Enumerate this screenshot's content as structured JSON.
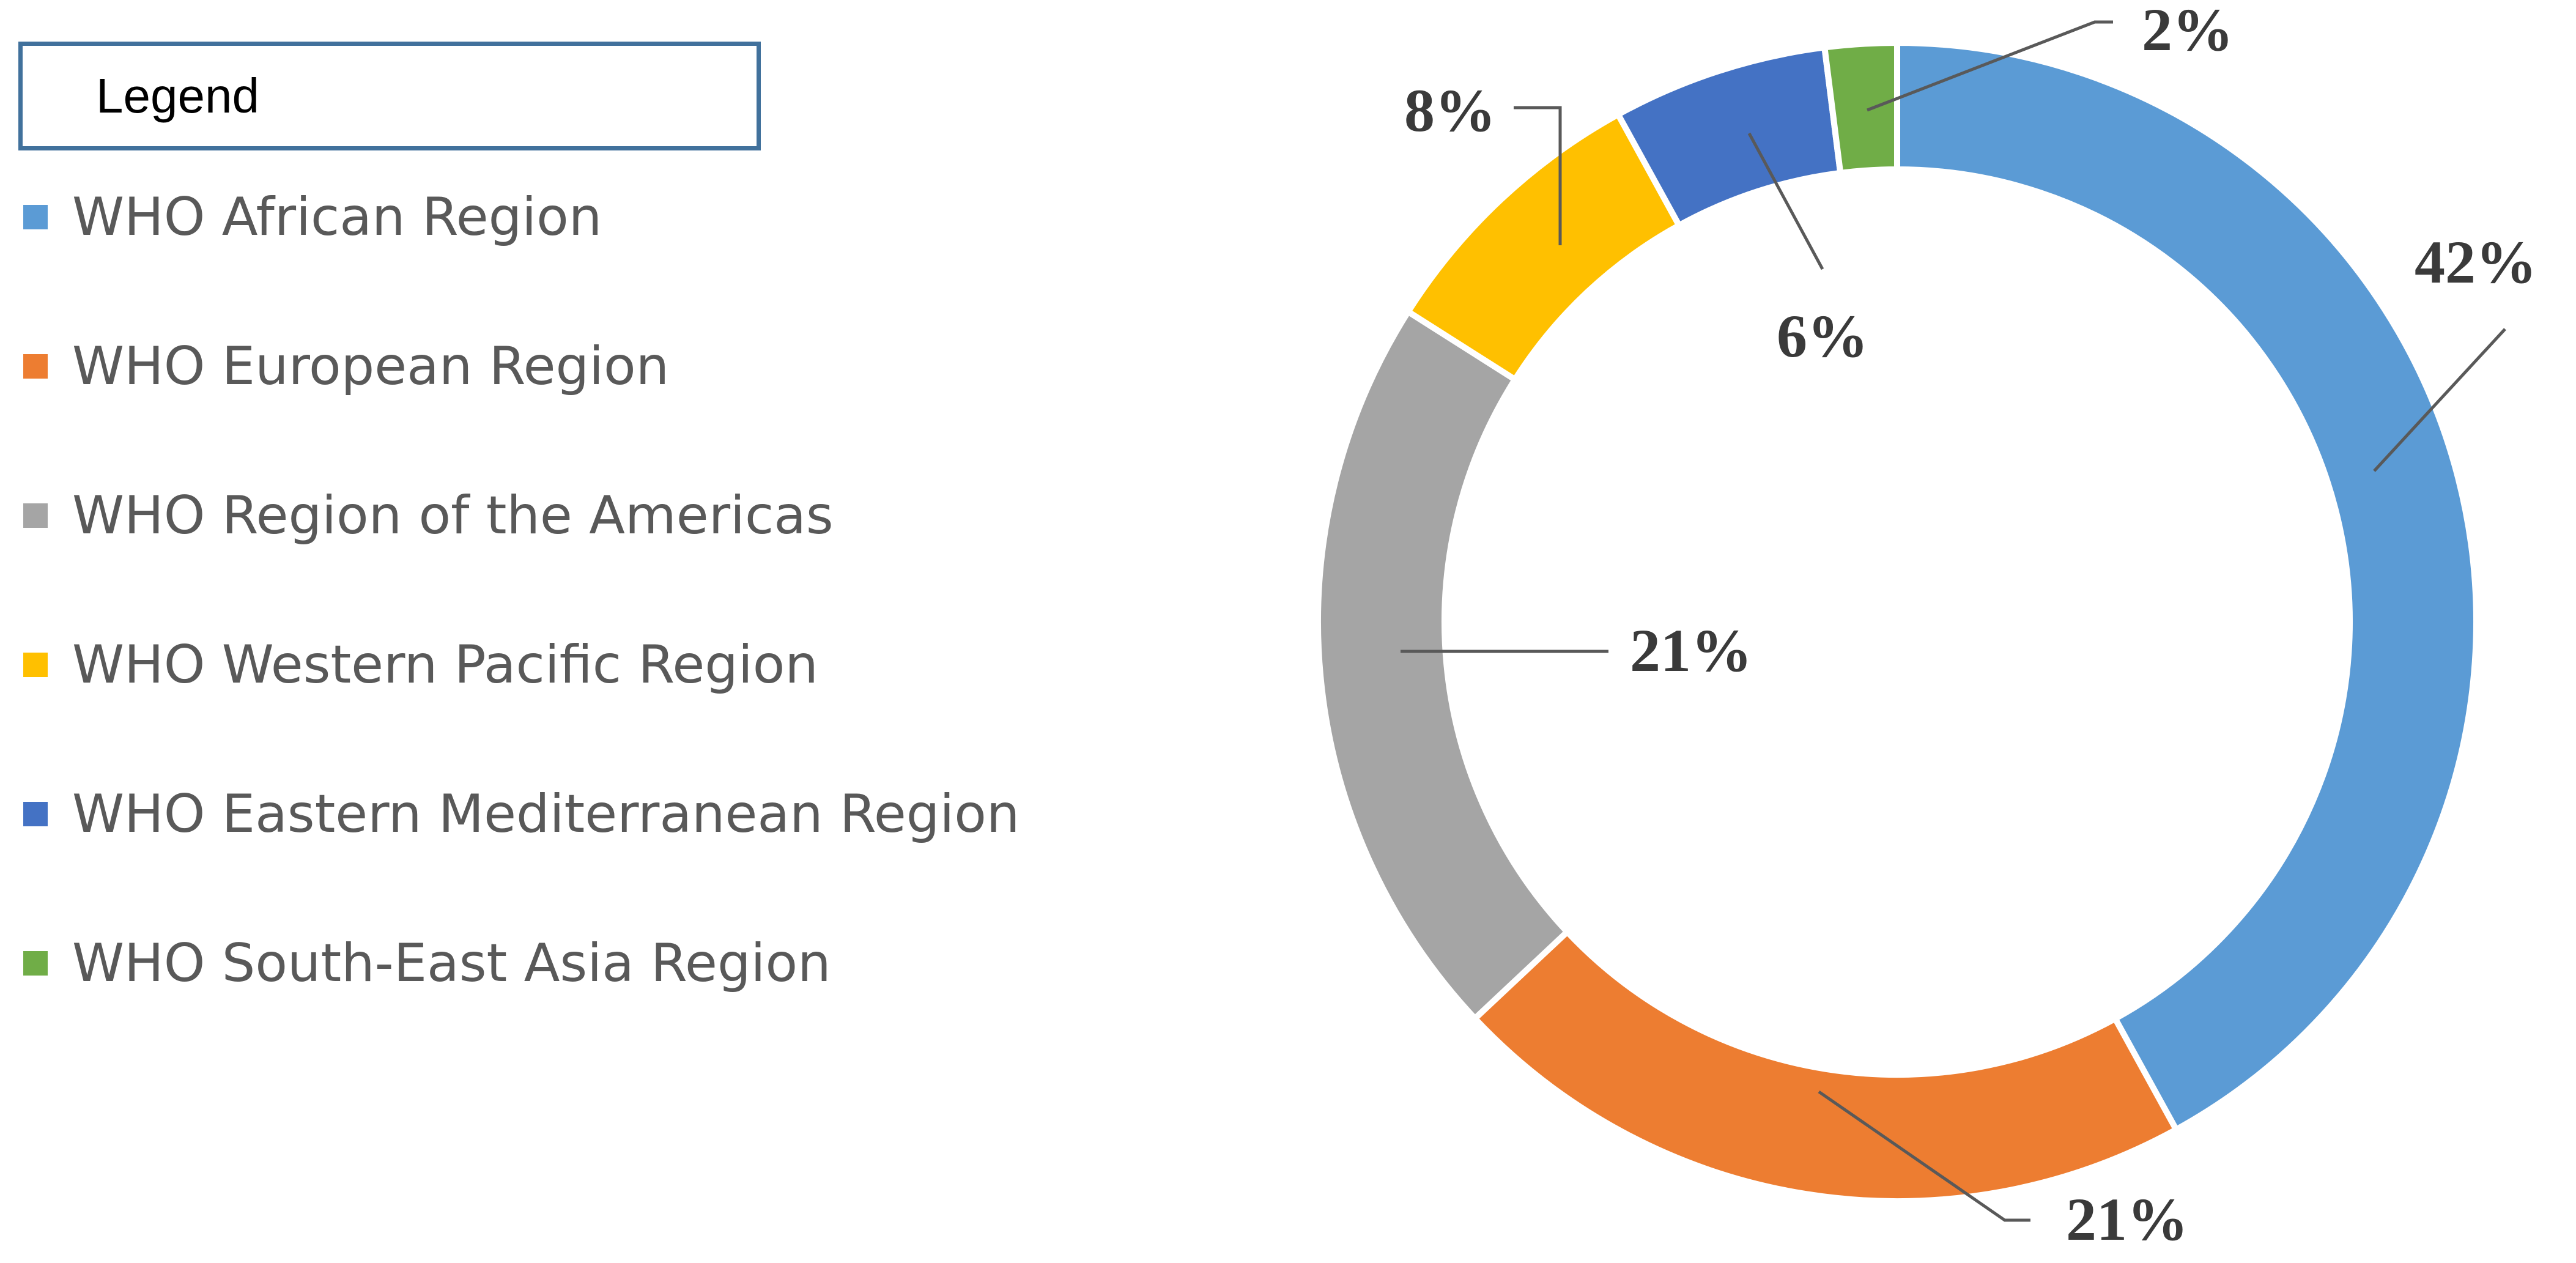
{
  "legend": {
    "title": "Legend"
  },
  "chart_data": {
    "type": "pie",
    "variant": "donut",
    "legend_position": "left",
    "categories": [
      "WHO African Region",
      "WHO European Region",
      "WHO Region of the Americas",
      "WHO Western Pacific Region",
      "WHO Eastern Mediterranean Region",
      "WHO South-East Asia Region"
    ],
    "values": [
      42,
      21,
      21,
      8,
      6,
      2
    ],
    "labels": [
      "42%",
      "21%",
      "21%",
      "8%",
      "6%",
      "2%"
    ],
    "colors": [
      "#5B9BD5",
      "#ED7D31",
      "#A5A5A5",
      "#FFC000",
      "#4472C4",
      "#70AD47"
    ]
  }
}
